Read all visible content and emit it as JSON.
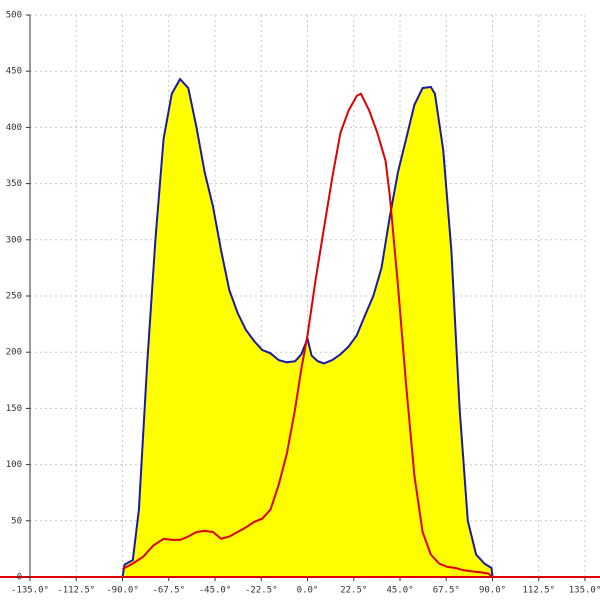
{
  "chart_data": {
    "type": "area-line",
    "xlim": [
      -135,
      135
    ],
    "ylim": [
      0,
      500
    ],
    "xticks": [
      {
        "value": -135,
        "label": "-135.0°"
      },
      {
        "value": -112.5,
        "label": "-112.5°"
      },
      {
        "value": -90,
        "label": "-90.0°"
      },
      {
        "value": -67.5,
        "label": "-67.5°"
      },
      {
        "value": -45,
        "label": "-45.0°"
      },
      {
        "value": -22.5,
        "label": "-22.5°"
      },
      {
        "value": 0,
        "label": "0.0°"
      },
      {
        "value": 22.5,
        "label": "22.5°"
      },
      {
        "value": 45,
        "label": "45.0°"
      },
      {
        "value": 67.5,
        "label": "67.5°"
      },
      {
        "value": 90,
        "label": "90.0°"
      },
      {
        "value": 112.5,
        "label": "112.5°"
      },
      {
        "value": 135,
        "label": "135.0°"
      }
    ],
    "yticks": [
      0,
      50,
      100,
      150,
      200,
      250,
      300,
      350,
      400,
      450,
      500
    ],
    "grid": true,
    "axis_color": "#e00000",
    "series": [
      {
        "color": "#1a1aa6",
        "fill": "#ffff00",
        "x": [
          -90,
          -89,
          -85,
          -82,
          -78,
          -74,
          -70,
          -66,
          -62,
          -58,
          -54,
          -50,
          -46,
          -42,
          -38,
          -34,
          -30,
          -26,
          -22,
          -18,
          -14,
          -10,
          -6,
          -3,
          0,
          2,
          5,
          8,
          12,
          16,
          20,
          24,
          28,
          32,
          36,
          40,
          44,
          48,
          52,
          56,
          60,
          62,
          66,
          70,
          74,
          78,
          82,
          86,
          89.5,
          90
        ],
        "values": [
          0,
          11,
          15,
          60,
          190,
          300,
          390,
          430,
          443,
          435,
          400,
          360,
          330,
          290,
          255,
          235,
          220,
          210,
          202,
          199,
          193,
          191,
          192,
          198,
          212,
          197,
          192,
          190,
          193,
          198,
          205,
          215,
          233,
          250,
          275,
          320,
          360,
          390,
          420,
          435,
          436,
          430,
          380,
          290,
          150,
          50,
          20,
          12,
          8,
          0
        ]
      },
      {
        "color": "#e00000",
        "x": [
          -90,
          -85,
          -80,
          -75,
          -70,
          -66,
          -62,
          -58,
          -54,
          -50,
          -46,
          -42,
          -38,
          -34,
          -30,
          -26,
          -22,
          -18,
          -14,
          -10,
          -6,
          -3,
          0,
          4,
          8,
          12,
          16,
          20,
          24,
          26,
          30,
          34,
          38,
          40,
          44,
          48,
          52,
          56,
          60,
          64,
          68,
          72,
          76,
          80,
          85,
          88,
          90
        ],
        "values": [
          7,
          12,
          18,
          28,
          34,
          33,
          33,
          36,
          40,
          41,
          40,
          34,
          36,
          40,
          44,
          49,
          52,
          60,
          82,
          110,
          150,
          185,
          215,
          265,
          310,
          355,
          395,
          415,
          428,
          430,
          415,
          395,
          370,
          340,
          260,
          170,
          90,
          40,
          20,
          12,
          9,
          8,
          6,
          5,
          4,
          3,
          0
        ]
      }
    ]
  }
}
